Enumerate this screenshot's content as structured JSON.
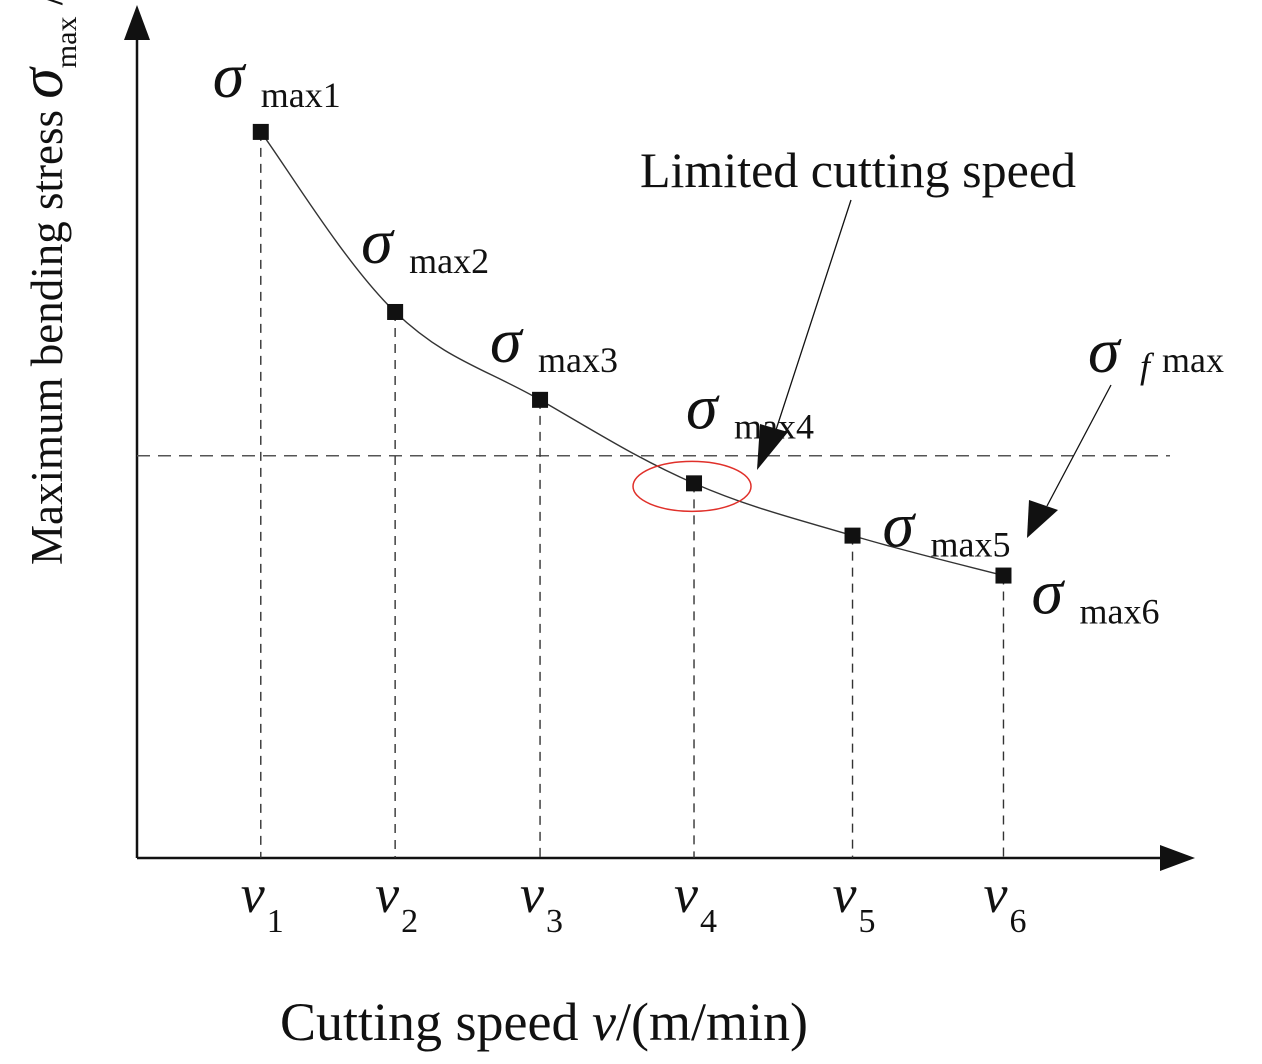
{
  "chart_data": {
    "type": "line",
    "title": "",
    "xlabel": {
      "prefix": "Cutting speed ",
      "var": "v",
      "suffix": "/(m/min)"
    },
    "ylabel": {
      "prefix": "Maximum bending stress  ",
      "sigma": "σ",
      "sub": "max",
      "unit": " /MPa"
    },
    "categories": [
      "v1",
      "v2",
      "v3",
      "v4",
      "v5",
      "v6"
    ],
    "category_labels": [
      {
        "var": "v",
        "sub": "1"
      },
      {
        "var": "v",
        "sub": "2"
      },
      {
        "var": "v",
        "sub": "3"
      },
      {
        "var": "v",
        "sub": "4"
      },
      {
        "var": "v",
        "sub": "5"
      },
      {
        "var": "v",
        "sub": "6"
      }
    ],
    "x": [
      1.0,
      1.89,
      2.85,
      3.87,
      4.92,
      5.92
    ],
    "series": [
      {
        "name": "σmax",
        "values": [
          100,
          75.2,
          63.1,
          51.6,
          44.4,
          38.9
        ]
      }
    ],
    "point_labels": [
      {
        "sigma": "σ",
        "sub": "max1"
      },
      {
        "sigma": "σ",
        "sub": "max2"
      },
      {
        "sigma": "σ",
        "sub": "max3"
      },
      {
        "sigma": "σ",
        "sub": "max4"
      },
      {
        "sigma": "σ",
        "sub": "max5"
      },
      {
        "sigma": "σ",
        "sub": "max6"
      }
    ],
    "threshold": {
      "value": 55.4,
      "label_sigma": "σ",
      "label_sub_f": "f",
      "label_sub": "max"
    },
    "annotations": {
      "limited_speed": "Limited cutting speed",
      "highlight_index": 3
    },
    "xlim": [
      0.18,
      6.99
    ],
    "ylim": [
      0,
      115
    ],
    "grid": false,
    "colors": {
      "ink": "#111111",
      "dash": "#555555",
      "highlight": "#e0302a"
    }
  }
}
